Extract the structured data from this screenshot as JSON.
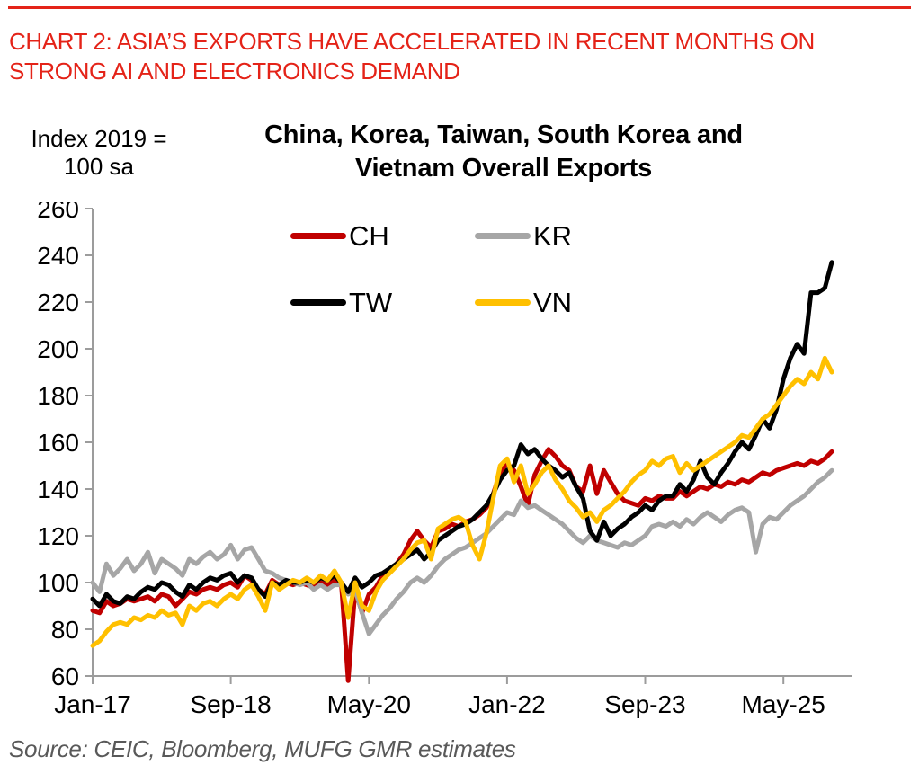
{
  "header": {
    "lines": [
      "CHART 2: ASIA’S EXPORTS HAVE ACCELERATED IN RECENT MONTHS ON",
      "STRONG AI AND ELECTRONICS DEMAND"
    ]
  },
  "colors": {
    "heading_red": "#E42318",
    "axis_gray": "#9C9C9C",
    "source_gray": "#595959"
  },
  "chart_data": {
    "type": "line",
    "title": "China, Korea, Taiwan, South Korea and Vietnam Overall Exports",
    "title_lines": [
      "China, Korea, Taiwan, South Korea and",
      "Vietnam Overall Exports"
    ],
    "y_axis_label": "Index 2019 = 100 sa",
    "y_axis_unit_lines": [
      "Index 2019 =",
      "100 sa"
    ],
    "ylim": [
      60,
      260
    ],
    "y_ticks": [
      60,
      80,
      100,
      120,
      140,
      160,
      180,
      200,
      220,
      240,
      260
    ],
    "x_ticks": [
      {
        "label": "Jan-17",
        "m": 0
      },
      {
        "label": "Sep-18",
        "m": 20
      },
      {
        "label": "May-20",
        "m": 40
      },
      {
        "label": "Jan-22",
        "m": 60
      },
      {
        "label": "Sep-23",
        "m": 80
      },
      {
        "label": "May-25",
        "m": 100
      }
    ],
    "x_domain_months": 110,
    "x_start": "Jan-17",
    "x_frequency": "monthly",
    "n_points": 108,
    "grid": false,
    "legend_position": "top-inside",
    "series": [
      {
        "name": "CH",
        "color": "#C00000",
        "values": [
          88,
          87,
          92,
          90,
          91,
          93,
          92,
          93,
          94,
          92,
          95,
          94,
          90,
          93,
          96,
          95,
          97,
          98,
          97,
          99,
          100,
          98,
          103,
          101,
          97,
          95,
          101,
          99,
          100,
          99,
          100,
          99,
          98,
          100,
          99,
          101,
          100,
          58,
          97,
          87,
          95,
          98,
          103,
          105,
          108,
          112,
          118,
          122,
          118,
          115,
          122,
          123,
          125,
          124,
          126,
          127,
          129,
          132,
          138,
          147,
          151,
          148,
          141,
          133,
          146,
          152,
          157,
          154,
          150,
          148,
          141,
          139,
          150,
          138,
          148,
          143,
          138,
          135,
          134,
          133,
          136,
          135,
          137,
          136,
          136,
          139,
          137,
          139,
          141,
          140,
          142,
          141,
          143,
          142,
          144,
          143,
          145,
          147,
          146,
          148,
          149,
          150,
          151,
          150,
          152,
          151,
          153,
          156
        ]
      },
      {
        "name": "KR",
        "color": "#A6A6A6",
        "values": [
          100,
          96,
          108,
          103,
          106,
          110,
          105,
          108,
          113,
          104,
          110,
          108,
          106,
          103,
          110,
          108,
          111,
          113,
          110,
          112,
          116,
          110,
          114,
          115,
          110,
          105,
          104,
          102,
          101,
          100,
          99,
          100,
          97,
          99,
          97,
          99,
          99,
          95,
          97,
          87,
          78,
          82,
          86,
          89,
          93,
          96,
          100,
          102,
          100,
          103,
          107,
          110,
          112,
          114,
          115,
          117,
          119,
          121,
          124,
          127,
          130,
          129,
          135,
          132,
          133,
          131,
          129,
          127,
          125,
          122,
          119,
          117,
          120,
          118,
          117,
          116,
          115,
          117,
          116,
          118,
          120,
          124,
          125,
          124,
          126,
          124,
          127,
          125,
          128,
          130,
          128,
          126,
          129,
          131,
          132,
          130,
          113,
          125,
          128,
          127,
          130,
          133,
          135,
          137,
          140,
          143,
          145,
          148
        ]
      },
      {
        "name": "TW",
        "color": "#000000",
        "values": [
          93,
          90,
          95,
          92,
          91,
          94,
          93,
          96,
          98,
          97,
          100,
          99,
          96,
          94,
          99,
          97,
          100,
          102,
          101,
          103,
          104,
          100,
          103,
          102,
          97,
          94,
          100,
          99,
          101,
          100,
          100,
          101,
          100,
          102,
          101,
          103,
          100,
          96,
          102,
          98,
          100,
          103,
          104,
          106,
          108,
          110,
          112,
          114,
          110,
          113,
          118,
          120,
          122,
          124,
          125,
          127,
          130,
          133,
          138,
          144,
          148,
          150,
          159,
          155,
          157,
          153,
          150,
          148,
          145,
          147,
          141,
          136,
          122,
          118,
          126,
          120,
          123,
          125,
          128,
          130,
          133,
          131,
          135,
          137,
          137,
          142,
          139,
          144,
          152,
          145,
          142,
          147,
          151,
          156,
          160,
          157,
          163,
          170,
          166,
          174,
          187,
          196,
          202,
          198,
          224,
          224,
          226,
          237
        ]
      },
      {
        "name": "VN",
        "color": "#FFC000",
        "values": [
          73,
          75,
          79,
          82,
          83,
          82,
          85,
          84,
          86,
          85,
          88,
          86,
          87,
          82,
          90,
          88,
          91,
          92,
          90,
          93,
          95,
          93,
          97,
          99,
          94,
          88,
          100,
          97,
          99,
          101,
          100,
          102,
          100,
          103,
          101,
          105,
          100,
          85,
          100,
          90,
          88,
          96,
          101,
          104,
          107,
          110,
          114,
          117,
          118,
          110,
          123,
          125,
          127,
          128,
          126,
          116,
          110,
          121,
          136,
          150,
          153,
          143,
          150,
          138,
          142,
          147,
          150,
          144,
          140,
          135,
          132,
          128,
          130,
          126,
          131,
          133,
          136,
          139,
          143,
          146,
          148,
          152,
          150,
          153,
          154,
          147,
          151,
          148,
          150,
          152,
          154,
          156,
          158,
          160,
          163,
          162,
          166,
          170,
          172,
          176,
          180,
          184,
          187,
          185,
          190,
          187,
          196,
          190
        ]
      }
    ],
    "source": "Source: CEIC, Bloomberg, MUFG GMR estimates"
  }
}
